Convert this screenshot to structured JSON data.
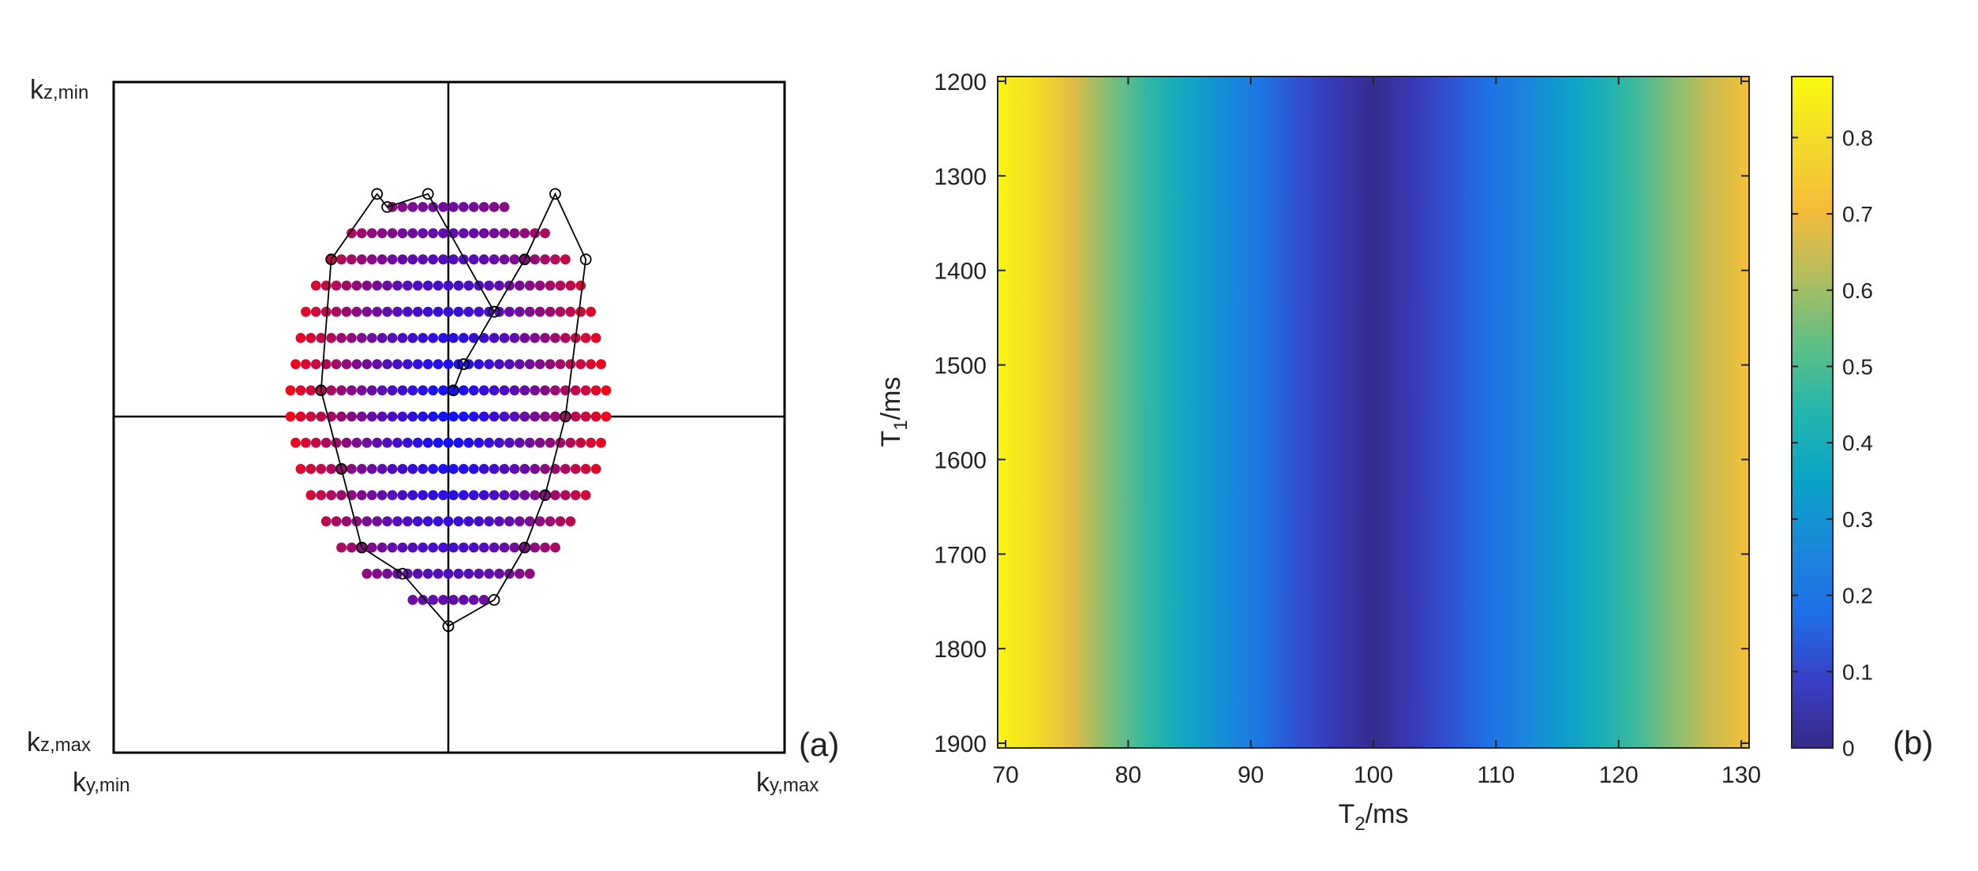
{
  "panel_a": {
    "label": "(a)",
    "corner_labels": {
      "kz_min": {
        "base": "k",
        "sub": "z,min"
      },
      "kz_max": {
        "base": "k",
        "sub": "z,max"
      },
      "ky_min": {
        "base": "k",
        "sub": "y,min"
      },
      "ky_max": {
        "base": "k",
        "sub": "y,max"
      }
    },
    "colors": {
      "center": "#1010ff",
      "edge": "#ff0808"
    },
    "max_radius": 16.3,
    "rows": [
      {
        "kz": -8,
        "ky_min": -5.5,
        "ky_max": 5.5
      },
      {
        "kz": -7,
        "ky_min": -9.5,
        "ky_max": 9.5
      },
      {
        "kz": -6,
        "ky_min": -11.5,
        "ky_max": 11.5
      },
      {
        "kz": -5,
        "ky_min": -13.0,
        "ky_max": 13.0
      },
      {
        "kz": -4,
        "ky_min": -14.0,
        "ky_max": 14.0
      },
      {
        "kz": -3,
        "ky_min": -14.5,
        "ky_max": 14.5
      },
      {
        "kz": -2,
        "ky_min": -15.0,
        "ky_max": 15.0
      },
      {
        "kz": -1,
        "ky_min": -15.5,
        "ky_max": 15.5
      },
      {
        "kz": 0,
        "ky_min": -15.5,
        "ky_max": 15.5
      },
      {
        "kz": 1,
        "ky_min": -15.0,
        "ky_max": 15.0
      },
      {
        "kz": 2,
        "ky_min": -14.5,
        "ky_max": 14.5
      },
      {
        "kz": 3,
        "ky_min": -13.5,
        "ky_max": 13.5
      },
      {
        "kz": 4,
        "ky_min": -12.0,
        "ky_max": 12.0
      },
      {
        "kz": 5,
        "ky_min": -10.5,
        "ky_max": 10.5
      },
      {
        "kz": 6,
        "ky_min": -8.0,
        "ky_max": 8.0
      },
      {
        "kz": 7,
        "ky_min": -3.5,
        "ky_max": 3.5
      }
    ],
    "trajectory": [
      [
        0.5,
        -1
      ],
      [
        1.5,
        -2
      ],
      [
        4.5,
        -4
      ],
      [
        7.5,
        -6
      ],
      [
        10.5,
        -8.5
      ],
      [
        13.5,
        -6
      ],
      [
        11.5,
        0
      ],
      [
        9.5,
        3
      ],
      [
        7.5,
        5
      ],
      [
        4.5,
        7
      ],
      [
        0,
        8
      ],
      [
        -4.5,
        6
      ],
      [
        -8.5,
        5
      ],
      [
        -10.5,
        2
      ],
      [
        -12.5,
        -1
      ],
      [
        -11.5,
        -6
      ],
      [
        -7,
        -8.5
      ],
      [
        -6,
        -8
      ],
      [
        -2,
        -8.5
      ],
      [
        4.5,
        -4
      ],
      [
        1.5,
        -2
      ]
    ]
  },
  "chart_data": {
    "type": "heatmap",
    "label": "(b)",
    "xlabel": {
      "base": "T",
      "sub": "2",
      "rest": "/ms"
    },
    "ylabel": {
      "base": "T",
      "sub": "1",
      "rest": "/ms"
    },
    "xlim": [
      70,
      130
    ],
    "ylim": [
      1200,
      1900
    ],
    "y_reversed": true,
    "xticks": [
      70,
      80,
      90,
      100,
      110,
      120,
      130
    ],
    "yticks": [
      1200,
      1300,
      1400,
      1500,
      1600,
      1700,
      1800,
      1900
    ],
    "colorbar": {
      "min": 0,
      "max": 0.88,
      "ticks": [
        0,
        0.1,
        0.2,
        0.3,
        0.4,
        0.5,
        0.6,
        0.7,
        0.8
      ],
      "colormap": "parula"
    },
    "note": "value depends only on T2 (vertical bands)",
    "profile": {
      "t2": [
        70,
        73,
        76,
        79,
        82,
        85,
        88,
        91,
        94,
        97,
        100,
        103,
        106,
        109,
        112,
        115,
        118,
        121,
        124,
        127,
        130
      ],
      "value": [
        0.87,
        0.8,
        0.68,
        0.56,
        0.46,
        0.37,
        0.28,
        0.2,
        0.12,
        0.06,
        0.01,
        0.06,
        0.12,
        0.18,
        0.25,
        0.33,
        0.4,
        0.48,
        0.57,
        0.65,
        0.72
      ]
    }
  }
}
